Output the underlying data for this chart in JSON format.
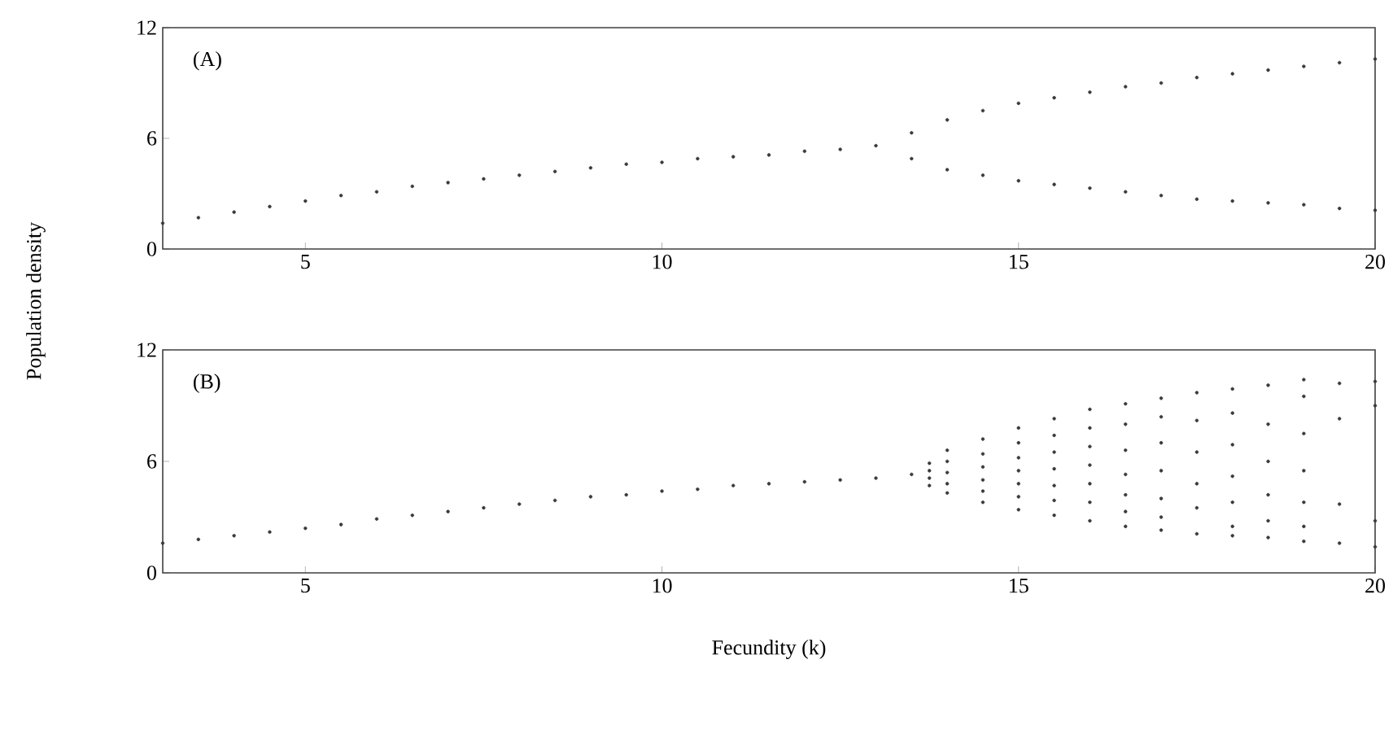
{
  "chart_data": [
    {
      "type": "scatter",
      "ylabel": "Population density",
      "annotations": [
        "(A)"
      ],
      "xlim": [
        3,
        20
      ],
      "ylim": [
        0,
        12
      ],
      "xticks": [
        5,
        10,
        15,
        20
      ],
      "yticks": [
        0,
        6,
        12
      ],
      "marker": "circle",
      "series": [
        {
          "color": "#3a3a3a",
          "x": [
            3,
            3.5,
            4,
            4.5,
            5,
            5.5,
            6,
            6.5,
            7,
            7.5,
            8,
            8.5,
            9,
            9.5,
            10,
            10.5,
            11,
            11.5,
            12,
            12.5,
            13,
            13.5,
            14,
            14.5,
            15,
            15.5,
            16,
            16.5,
            17,
            17.5,
            18,
            18.5,
            19,
            19.5,
            20,
            13.5,
            14,
            14.5,
            15,
            15.5,
            16,
            16.5,
            17,
            17.5,
            18,
            18.5,
            19,
            19.5,
            20
          ],
          "values": [
            1.4,
            1.7,
            2.0,
            2.3,
            2.6,
            2.9,
            3.1,
            3.4,
            3.6,
            3.8,
            4.0,
            4.2,
            4.4,
            4.6,
            4.7,
            4.9,
            5.0,
            5.1,
            5.3,
            5.4,
            5.6,
            6.3,
            7.0,
            7.5,
            7.9,
            8.2,
            8.5,
            8.8,
            9.0,
            9.3,
            9.5,
            9.7,
            9.9,
            10.1,
            10.3,
            4.9,
            4.3,
            4.0,
            3.7,
            3.5,
            3.3,
            3.1,
            2.9,
            2.7,
            2.6,
            2.5,
            2.4,
            2.2,
            2.1
          ]
        }
      ]
    },
    {
      "type": "scatter",
      "xlabel": "Fecundity (k)",
      "annotations": [
        "(B)"
      ],
      "xlim": [
        3,
        20
      ],
      "ylim": [
        0,
        12
      ],
      "xticks": [
        5,
        10,
        15,
        20
      ],
      "yticks": [
        0,
        6,
        12
      ],
      "marker": "circle",
      "series": [
        {
          "color": "#3a3a3a",
          "x": [
            3,
            3.5,
            4,
            4.5,
            5,
            5.5,
            6,
            6.5,
            7,
            7.5,
            8,
            8.5,
            9,
            9.5,
            10,
            10.5,
            11,
            11.5,
            12,
            12.5,
            13,
            13.5,
            13.75,
            13.75,
            13.75,
            13.75,
            14,
            14,
            14,
            14,
            14,
            14.5,
            14.5,
            14.5,
            14.5,
            14.5,
            14.5,
            15,
            15,
            15,
            15,
            15,
            15,
            15,
            15.5,
            15.5,
            15.5,
            15.5,
            15.5,
            15.5,
            15.5,
            16,
            16,
            16,
            16,
            16,
            16,
            16,
            16.5,
            16.5,
            16.5,
            16.5,
            16.5,
            16.5,
            16.5,
            17,
            17,
            17,
            17,
            17,
            17,
            17,
            17.5,
            17.5,
            17.5,
            17.5,
            17.5,
            17.5,
            18,
            18,
            18,
            18,
            18,
            18,
            18,
            18.5,
            18.5,
            18.5,
            18.5,
            18.5,
            18.5,
            19,
            19,
            19,
            19,
            19,
            19,
            19,
            19.5,
            19.5,
            19.5,
            19.5,
            20,
            20,
            20,
            20
          ],
          "values": [
            1.6,
            1.8,
            2.0,
            2.2,
            2.4,
            2.6,
            2.9,
            3.1,
            3.3,
            3.5,
            3.7,
            3.9,
            4.1,
            4.2,
            4.4,
            4.5,
            4.7,
            4.8,
            4.9,
            5.0,
            5.1,
            5.3,
            5.9,
            5.5,
            5.1,
            4.7,
            6.6,
            6.0,
            5.4,
            4.8,
            4.3,
            7.2,
            6.4,
            5.7,
            5.0,
            4.4,
            3.8,
            7.8,
            7.0,
            6.2,
            5.5,
            4.8,
            4.1,
            3.4,
            8.3,
            7.4,
            6.5,
            5.6,
            4.7,
            3.9,
            3.1,
            8.8,
            7.8,
            6.8,
            5.8,
            4.8,
            3.8,
            2.8,
            9.1,
            8.0,
            6.6,
            5.3,
            4.2,
            3.3,
            2.5,
            9.4,
            8.4,
            7.0,
            5.5,
            4.0,
            3.0,
            2.3,
            9.7,
            8.2,
            6.5,
            4.8,
            3.5,
            2.1,
            9.9,
            8.6,
            6.9,
            5.2,
            3.8,
            2.5,
            2.0,
            10.1,
            8.0,
            6.0,
            4.2,
            2.8,
            1.9,
            10.4,
            9.5,
            7.5,
            5.5,
            3.8,
            2.5,
            1.7,
            10.2,
            8.3,
            3.7,
            1.6,
            10.3,
            9.0,
            2.8,
            1.4
          ]
        }
      ]
    }
  ]
}
